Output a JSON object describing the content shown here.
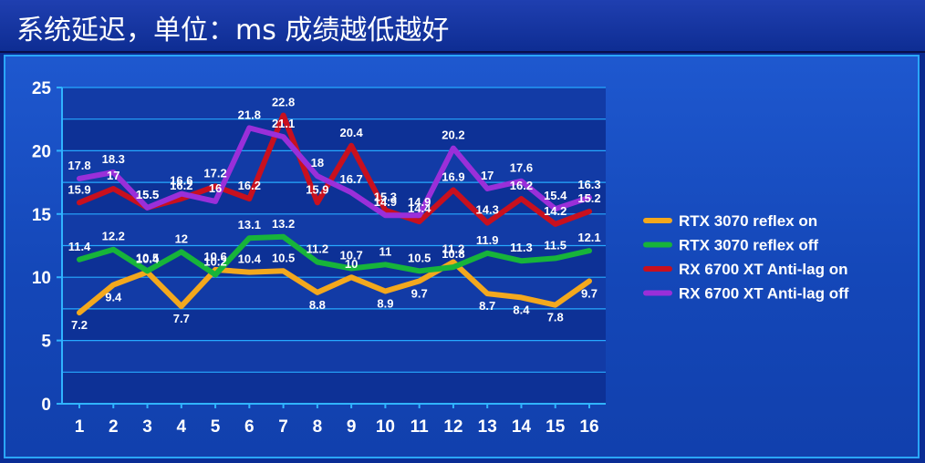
{
  "title": "系统延迟，单位：ms 成绩越低越好",
  "chart_data": {
    "type": "line",
    "title": "系统延迟，单位：ms 成绩越低越好",
    "xlabel": "",
    "ylabel": "",
    "categories": [
      "1",
      "2",
      "3",
      "4",
      "5",
      "6",
      "7",
      "8",
      "9",
      "10",
      "11",
      "12",
      "13",
      "14",
      "15",
      "16"
    ],
    "ylim": [
      0,
      25
    ],
    "yticks": [
      0,
      5,
      10,
      15,
      20,
      25
    ],
    "grid": true,
    "legend_position": "right",
    "series": [
      {
        "name": "RTX 3070 reflex on",
        "color": "#f3a81d",
        "values": [
          7.2,
          9.4,
          10.4,
          7.7,
          10.6,
          10.4,
          10.5,
          8.8,
          10,
          8.9,
          9.7,
          11.2,
          8.7,
          8.4,
          7.8,
          9.7
        ]
      },
      {
        "name": "RTX 3070 reflex off",
        "color": "#17b43a",
        "values": [
          11.4,
          12.2,
          10.5,
          12,
          10.2,
          13.1,
          13.2,
          11.2,
          10.7,
          11,
          10.5,
          10.8,
          11.9,
          11.3,
          11.5,
          12.1
        ]
      },
      {
        "name": "RX 6700 XT Anti-lag on",
        "color": "#c8101e",
        "values": [
          15.9,
          17,
          15.5,
          16.2,
          17.2,
          16.2,
          22.8,
          15.9,
          20.4,
          15.3,
          14.4,
          16.9,
          14.3,
          16.2,
          14.2,
          15.2
        ]
      },
      {
        "name": "RX 6700 XT Anti-lag off",
        "color": "#9a2fd9",
        "values": [
          17.8,
          18.3,
          15.5,
          16.6,
          16,
          21.8,
          21.1,
          18,
          16.7,
          14.9,
          14.9,
          20.2,
          17,
          17.6,
          15.4,
          16.3
        ]
      }
    ]
  }
}
